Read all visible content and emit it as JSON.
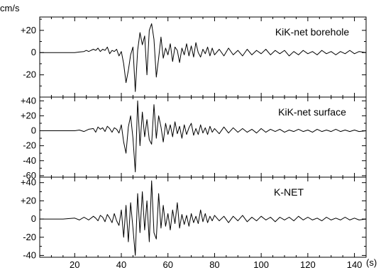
{
  "chart_data": {
    "type": "line",
    "y_unit": "cm/s",
    "x_unit": "(s)",
    "xlim": [
      5,
      145
    ],
    "x_ticks": [
      20,
      40,
      60,
      80,
      100,
      120,
      140
    ],
    "x_minor_step": 5,
    "panels": [
      {
        "label": "KiK-net borehole",
        "ylim": [
          -40,
          32
        ],
        "y_ticks": [
          20,
          0,
          -20
        ],
        "y_tick_labels": [
          "+20",
          "0",
          "-20"
        ],
        "y_minor_step": 10,
        "series": {
          "x": [
            5,
            10,
            15,
            20,
            22,
            24,
            25,
            26,
            28,
            29,
            30,
            31,
            32,
            33,
            34,
            35,
            36,
            37,
            38,
            39,
            40,
            41,
            42,
            43,
            44,
            45,
            46,
            47,
            48,
            49,
            50,
            51,
            52,
            53,
            54,
            55,
            56,
            57,
            58,
            59,
            60,
            61,
            62,
            63,
            64,
            65,
            66,
            67,
            68,
            69,
            70,
            71,
            72,
            73,
            74,
            75,
            76,
            77,
            78,
            79,
            80,
            82,
            84,
            86,
            88,
            90,
            92,
            94,
            96,
            98,
            100,
            102,
            104,
            106,
            108,
            110,
            112,
            114,
            116,
            118,
            120,
            122,
            124,
            126,
            128,
            130,
            132,
            134,
            136,
            138,
            140,
            142,
            145
          ],
          "y": [
            0,
            0,
            0,
            0,
            0.5,
            1,
            2,
            1,
            3,
            2,
            4,
            1,
            3,
            2,
            5,
            -1,
            2,
            1,
            3,
            -3,
            1,
            -10,
            -27,
            -16,
            -2,
            5,
            -35,
            2,
            18,
            7,
            15,
            -20,
            20,
            26,
            12,
            -22,
            -5,
            14,
            -5,
            4,
            -2,
            8,
            -8,
            5,
            2,
            -9,
            4,
            -2,
            8,
            -3,
            6,
            -4,
            9,
            0,
            -4,
            3,
            -1,
            5,
            -3,
            4,
            -2,
            3,
            -3,
            4,
            -2,
            2,
            -3,
            3,
            -2,
            2,
            -1,
            3,
            -2,
            2,
            -1,
            2,
            -3,
            1,
            -2,
            2,
            -1,
            1,
            -2,
            2,
            -1,
            1,
            -2,
            1,
            -1,
            2,
            -1,
            1,
            0
          ]
        }
      },
      {
        "label": "KiK-net surface",
        "ylim": [
          -62,
          45
        ],
        "y_ticks": [
          40,
          20,
          0,
          -20,
          -40,
          -60
        ],
        "y_tick_labels": [
          "+40",
          "+20",
          "0",
          "-20",
          "-40",
          "-60"
        ],
        "y_minor_step": 10,
        "series": {
          "x": [
            5,
            10,
            15,
            20,
            22,
            24,
            26,
            28,
            29,
            30,
            31,
            32,
            33,
            34,
            35,
            36,
            37,
            38,
            39,
            40,
            41,
            42,
            43,
            44,
            45,
            46,
            47,
            48,
            49,
            50,
            51,
            52,
            53,
            54,
            55,
            56,
            57,
            58,
            59,
            60,
            61,
            62,
            63,
            64,
            65,
            66,
            67,
            68,
            69,
            70,
            71,
            72,
            73,
            74,
            75,
            76,
            77,
            78,
            79,
            80,
            82,
            84,
            86,
            88,
            90,
            92,
            94,
            96,
            98,
            100,
            102,
            104,
            106,
            108,
            110,
            112,
            114,
            116,
            118,
            120,
            122,
            124,
            126,
            128,
            130,
            132,
            134,
            136,
            138,
            140,
            142,
            145
          ],
          "y": [
            0,
            0,
            0,
            0,
            1,
            -1,
            2,
            3,
            -2,
            5,
            2,
            4,
            -1,
            6,
            3,
            -2,
            4,
            2,
            -3,
            8,
            -15,
            -30,
            5,
            20,
            -10,
            -55,
            40,
            -20,
            25,
            -8,
            15,
            -12,
            -18,
            35,
            -10,
            20,
            5,
            -15,
            10,
            -5,
            8,
            -8,
            12,
            -4,
            6,
            -10,
            8,
            -5,
            4,
            10,
            -6,
            3,
            -5,
            8,
            -3,
            4,
            -5,
            6,
            -2,
            3,
            -4,
            5,
            -3,
            4,
            -2,
            3,
            -2,
            2,
            -3,
            3,
            -2,
            2,
            -1,
            2,
            -2,
            1,
            -1,
            2,
            -1,
            1,
            -2,
            2,
            -1,
            1,
            -1,
            2,
            -1,
            1,
            -1,
            1,
            -1,
            0
          ]
        }
      },
      {
        "label": "K-NET",
        "ylim": [
          -42,
          46
        ],
        "y_ticks": [
          40,
          20,
          0,
          -20,
          -40
        ],
        "y_tick_labels": [
          "+40",
          "+20",
          "0",
          "-20",
          "-40"
        ],
        "y_minor_step": 10,
        "series": {
          "x": [
            5,
            10,
            15,
            20,
            22,
            24,
            26,
            28,
            29,
            30,
            31,
            32,
            33,
            34,
            35,
            36,
            37,
            38,
            39,
            40,
            41,
            42,
            43,
            44,
            45,
            46,
            47,
            48,
            49,
            50,
            51,
            52,
            53,
            54,
            55,
            56,
            57,
            58,
            59,
            60,
            61,
            62,
            63,
            64,
            65,
            66,
            67,
            68,
            69,
            70,
            71,
            72,
            73,
            74,
            75,
            76,
            77,
            78,
            79,
            80,
            82,
            84,
            86,
            88,
            90,
            92,
            94,
            96,
            98,
            100,
            102,
            104,
            106,
            108,
            110,
            112,
            114,
            116,
            118,
            120,
            122,
            124,
            126,
            128,
            130,
            132,
            134,
            136,
            138,
            140,
            142,
            145
          ],
          "y": [
            0,
            0,
            0,
            1,
            -1,
            2,
            -1,
            3,
            1,
            -2,
            4,
            2,
            -3,
            5,
            1,
            -4,
            6,
            -2,
            -7,
            10,
            -20,
            15,
            -25,
            18,
            -10,
            -40,
            28,
            -15,
            30,
            -12,
            20,
            -25,
            42,
            -15,
            -22,
            28,
            -10,
            15,
            -8,
            6,
            -12,
            10,
            -5,
            18,
            -10,
            5,
            -6,
            4,
            -8,
            6,
            -4,
            3,
            -5,
            10,
            -3,
            6,
            -4,
            3,
            -2,
            4,
            -2,
            3,
            -4,
            3,
            -2,
            4,
            -3,
            2,
            -2,
            3,
            -1,
            2,
            -3,
            2,
            -1,
            2,
            -2,
            3,
            -1,
            2,
            -1,
            1,
            -2,
            2,
            -1,
            1,
            -1,
            2,
            -1,
            1,
            -1,
            0
          ]
        }
      }
    ]
  }
}
